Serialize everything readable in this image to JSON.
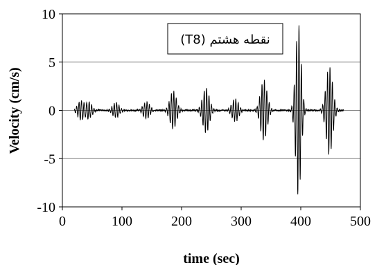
{
  "chart_data": {
    "type": "line",
    "title": "",
    "xlabel": "time (sec)",
    "ylabel": "Velocity (cm/s)",
    "xlim": [
      0,
      500
    ],
    "ylim": [
      -10,
      10
    ],
    "x_ticks": [
      "0",
      "100",
      "200",
      "300",
      "400",
      "500"
    ],
    "y_ticks": [
      "10",
      "5",
      "0",
      "-5",
      "-10"
    ],
    "grid": "horizontal",
    "legend_placement": "top-right",
    "series": [
      {
        "name": "نقطه هشتم (T8)",
        "color": "#000000",
        "bursts": [
          {
            "t": 31,
            "peak": 1.0
          },
          {
            "t": 44,
            "peak": 0.9
          },
          {
            "t": 90,
            "peak": 0.8
          },
          {
            "t": 141,
            "peak": 0.9
          },
          {
            "t": 186,
            "peak": 2.0
          },
          {
            "t": 241,
            "peak": 2.4
          },
          {
            "t": 290,
            "peak": 1.2
          },
          {
            "t": 338,
            "peak": 3.2
          },
          {
            "t": 396,
            "peak": 9.0
          },
          {
            "t": 448,
            "peak": 4.6
          }
        ]
      }
    ]
  }
}
